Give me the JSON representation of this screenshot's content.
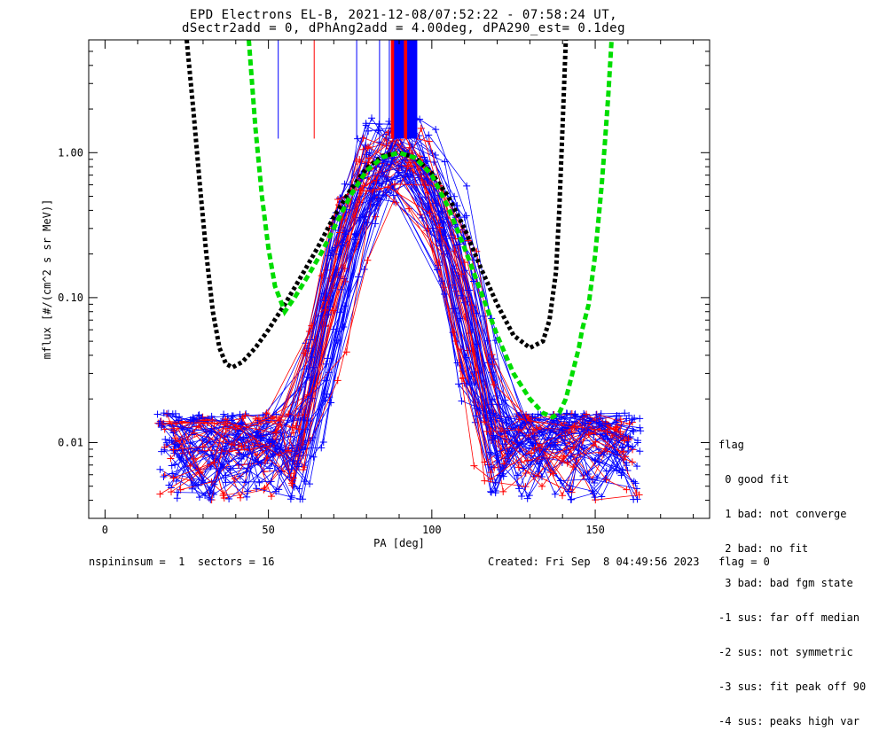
{
  "chart_data": {
    "type": "line",
    "title": "EPD Electrons EL-B, 2021-12-08/07:52:22 - 07:58:24 UT,",
    "subtitle": "dSectr2add = 0, dPhAng2add = 4.00deg, dPA290_est=   0.1deg",
    "xlabel": "PA [deg]",
    "ylabel": "mflux [#/(cm^2 s sr MeV)]",
    "xlim": [
      -5,
      185
    ],
    "ylim": [
      0.003,
      6.0
    ],
    "yscale": "log",
    "x_ticks": [
      0,
      50,
      100,
      150
    ],
    "x_tick_labels": [
      "0",
      "50",
      "100",
      "150"
    ],
    "y_ticks": [
      0.01,
      0.1,
      1.0
    ],
    "y_tick_labels": [
      "0.01",
      "0.10",
      "1.00"
    ],
    "grid": false,
    "legend": {
      "title": "flag",
      "placement": "right",
      "entries": [
        " 0 good fit",
        " 1 bad: not converge",
        " 2 bad: no fit",
        " 3 bad: bad fgm state",
        "-1 sus: far off median",
        "-2 sus: not symmetric",
        "-3 sus: fit peak off 90",
        "-4 sus: peaks high var"
      ]
    },
    "series": [
      {
        "color": "#000000",
        "style": "dotted",
        "x": [
          25,
          27,
          29,
          31,
          33,
          35,
          37,
          39,
          42,
          46,
          50,
          55,
          60,
          65,
          70,
          75,
          80,
          85,
          90,
          95,
          100,
          105,
          110,
          115,
          120,
          125,
          130,
          134,
          136,
          138,
          139,
          140,
          141
        ],
        "y": [
          6.0,
          2.0,
          0.6,
          0.2,
          0.08,
          0.045,
          0.035,
          0.033,
          0.036,
          0.045,
          0.06,
          0.09,
          0.14,
          0.22,
          0.36,
          0.55,
          0.78,
          0.95,
          1.0,
          0.92,
          0.72,
          0.5,
          0.3,
          0.16,
          0.09,
          0.055,
          0.045,
          0.05,
          0.07,
          0.15,
          0.4,
          1.5,
          6.0
        ]
      },
      {
        "color": "#00dd00",
        "style": "dashed",
        "x": [
          44,
          46,
          48,
          50,
          52,
          55,
          58,
          62,
          66,
          70,
          75,
          80,
          85,
          90,
          95,
          100,
          105,
          110,
          115,
          120,
          125,
          130,
          134,
          137,
          139,
          141,
          143,
          145,
          146,
          148,
          150,
          152,
          153,
          154,
          155
        ],
        "y": [
          6.0,
          1.5,
          0.5,
          0.22,
          0.12,
          0.08,
          0.1,
          0.14,
          0.2,
          0.3,
          0.5,
          0.75,
          0.93,
          1.0,
          0.92,
          0.7,
          0.42,
          0.22,
          0.11,
          0.055,
          0.03,
          0.02,
          0.016,
          0.015,
          0.016,
          0.02,
          0.03,
          0.045,
          0.06,
          0.09,
          0.2,
          0.6,
          1.2,
          2.5,
          6.0
        ]
      }
    ],
    "annotations": [
      {
        "label": "scattered red and blue PA spectra (+ markers)"
      }
    ]
  },
  "footer": {
    "left": "nspininsum =  1  sectors = 16",
    "right": "Created: Fri Sep  8 04:49:56 2023   flag = 0"
  }
}
